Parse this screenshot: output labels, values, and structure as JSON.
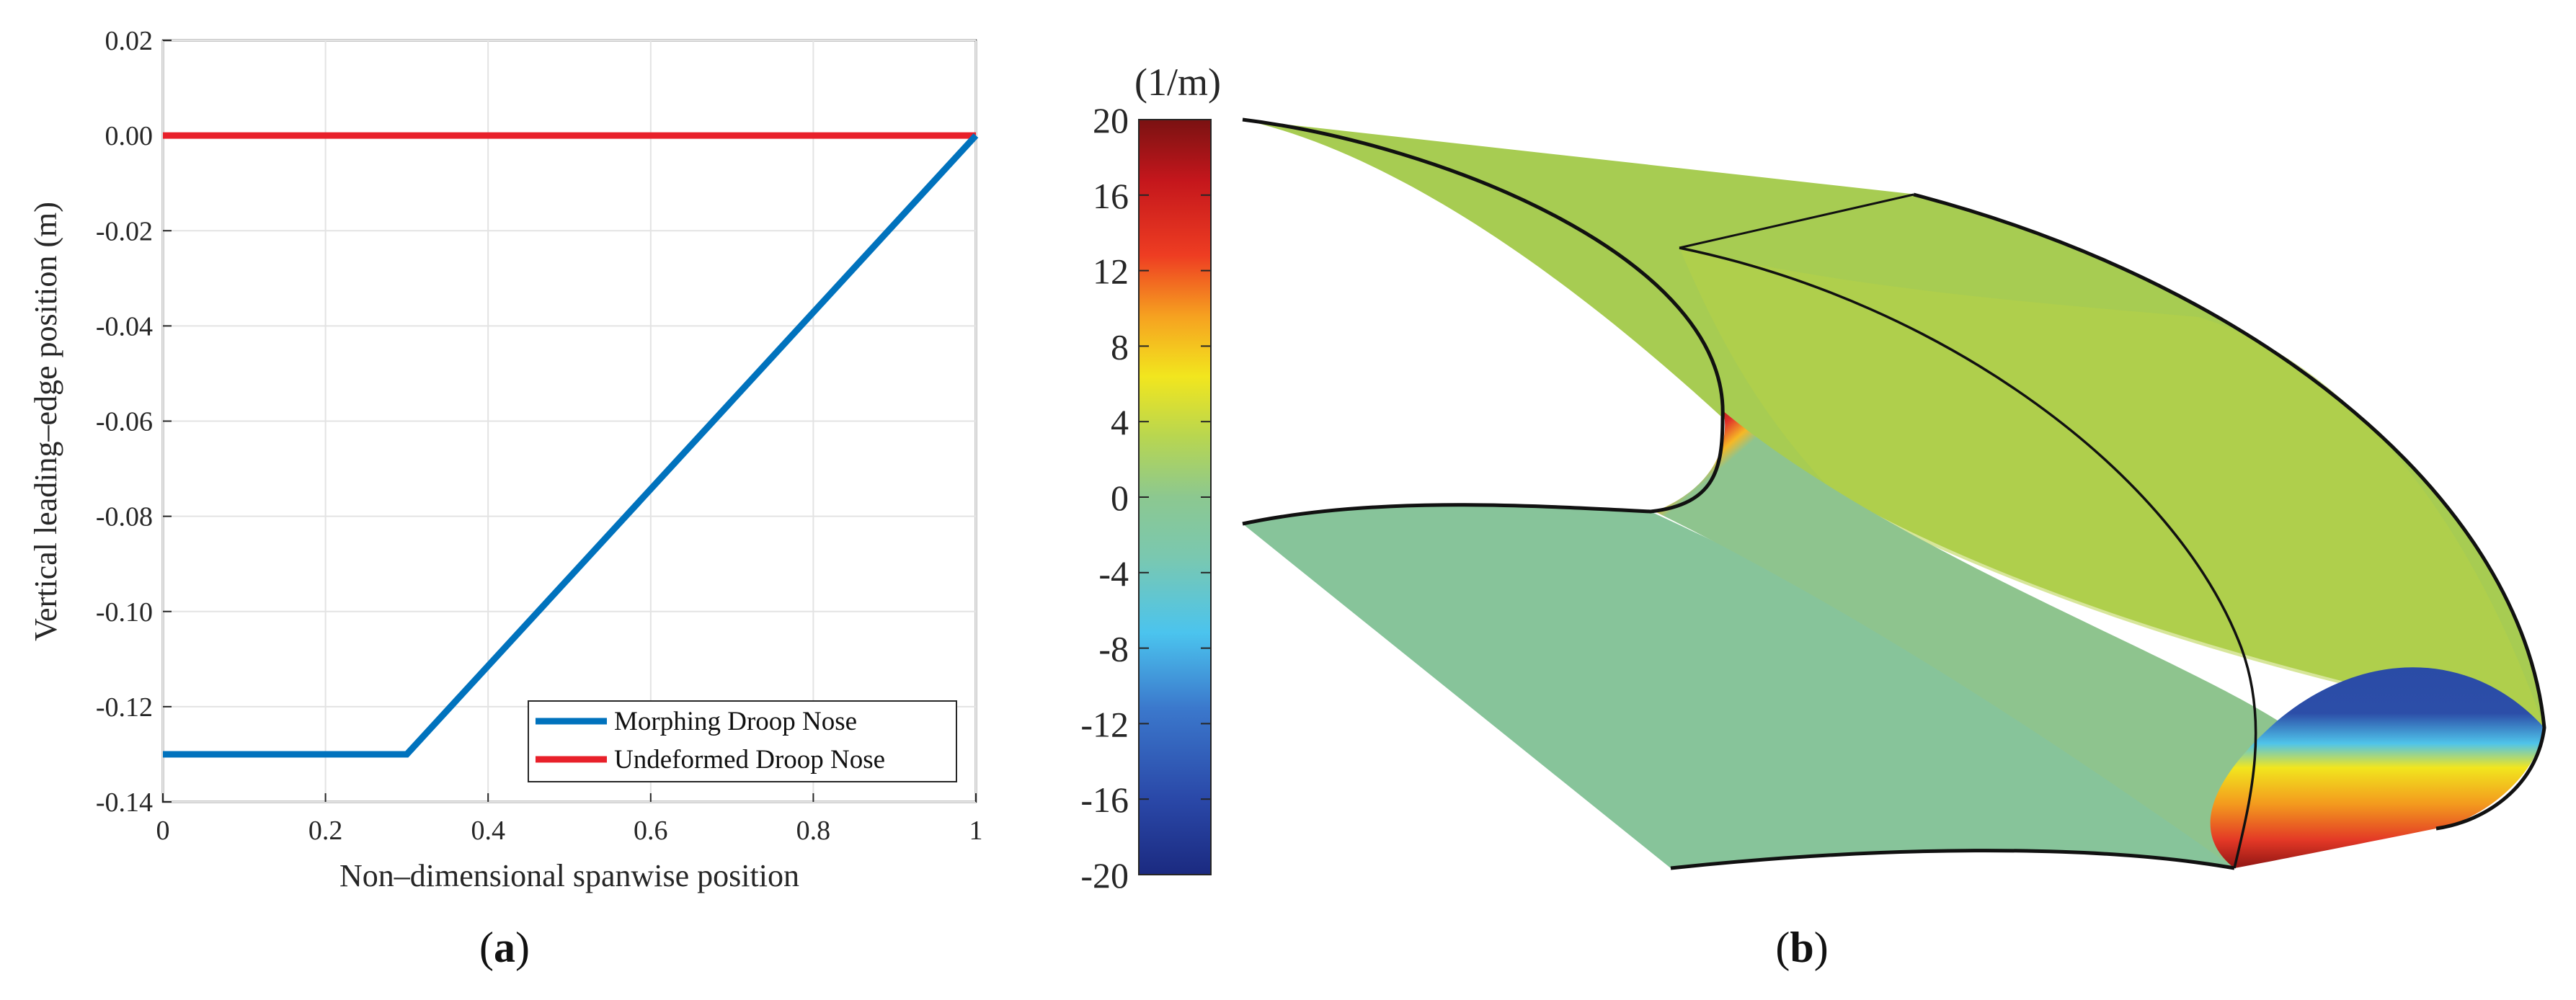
{
  "chart_data": [
    {
      "type": "line",
      "panel_label": "a",
      "xlabel": "Non–dimensional spanwise position",
      "ylabel": "Vertical leading–edge position (m)",
      "xlim": [
        0,
        1
      ],
      "ylim": [
        -0.14,
        0.02
      ],
      "xticks": [
        "0",
        "0.2",
        "0.4",
        "0.6",
        "0.8",
        "1"
      ],
      "yticks": [
        "0.02",
        "0.00",
        "-0.02",
        "-0.04",
        "-0.06",
        "-0.08",
        "-0.10",
        "-0.12",
        "-0.14"
      ],
      "grid": true,
      "legend_position": "bottom-right",
      "series": [
        {
          "name": "Morphing Droop Nose",
          "color": "#0072BD",
          "x": [
            0,
            0.3,
            1.0
          ],
          "y": [
            -0.13,
            -0.13,
            0.0
          ]
        },
        {
          "name": "Undeformed Droop Nose",
          "color": "#E8202A",
          "x": [
            0,
            1.0
          ],
          "y": [
            0.0,
            0.0
          ]
        }
      ]
    },
    {
      "type": "heatmap",
      "panel_label": "b",
      "colorbar_unit": "(1/m)",
      "colorbar_range": [
        -20,
        20
      ],
      "colorbar_ticks": [
        "20",
        "16",
        "12",
        "8",
        "4",
        "0",
        "-4",
        "-8",
        "-12",
        "-16",
        "-20"
      ]
    }
  ]
}
